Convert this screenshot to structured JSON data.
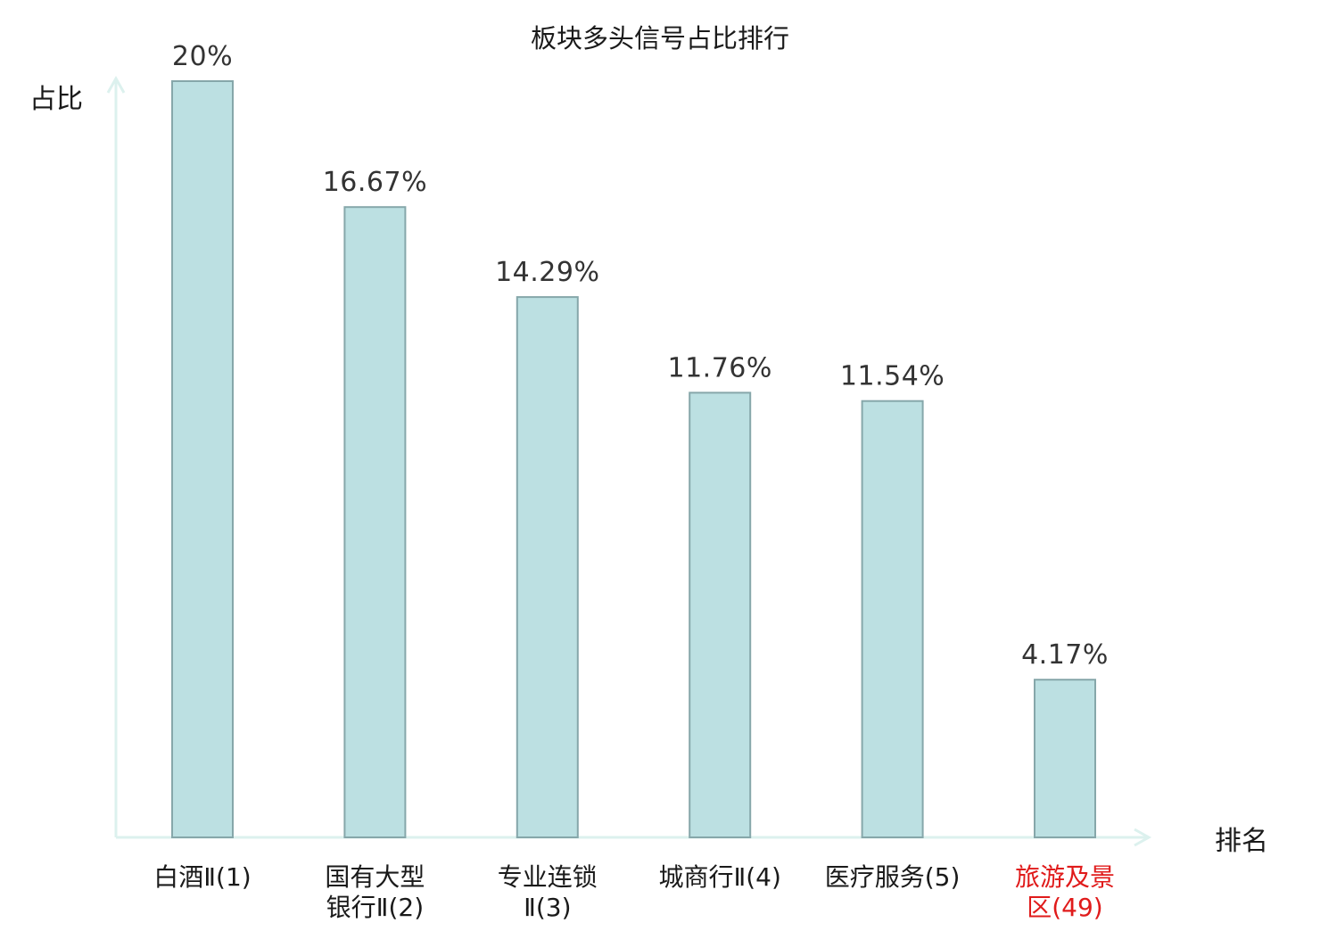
{
  "chart_data": {
    "type": "bar",
    "title": "板块多头信号占比排行",
    "ylabel": "占比",
    "xlabel": "排名",
    "ylim": [
      0,
      20
    ],
    "grid": false,
    "categories": [
      [
        "白酒Ⅱ(1)"
      ],
      [
        "国有大型",
        "银行Ⅱ(2)"
      ],
      [
        "专业连锁",
        "Ⅱ(3)"
      ],
      [
        "城商行Ⅱ(4)"
      ],
      [
        "医疗服务(5)"
      ],
      [
        "旅游及景",
        "区(49)"
      ]
    ],
    "values": [
      20,
      16.67,
      14.29,
      11.76,
      11.54,
      4.17
    ],
    "value_labels": [
      "20%",
      "16.67%",
      "14.29%",
      "11.76%",
      "11.54%",
      "4.17%"
    ],
    "highlight_index": 5,
    "colors": {
      "bar_fill": "#bce0e2",
      "bar_stroke": "#86a7aa",
      "axis": "#dcf1ee",
      "text": "#1a1a1a",
      "value_text": "#333333",
      "highlight_text": "#e01b1b"
    }
  }
}
